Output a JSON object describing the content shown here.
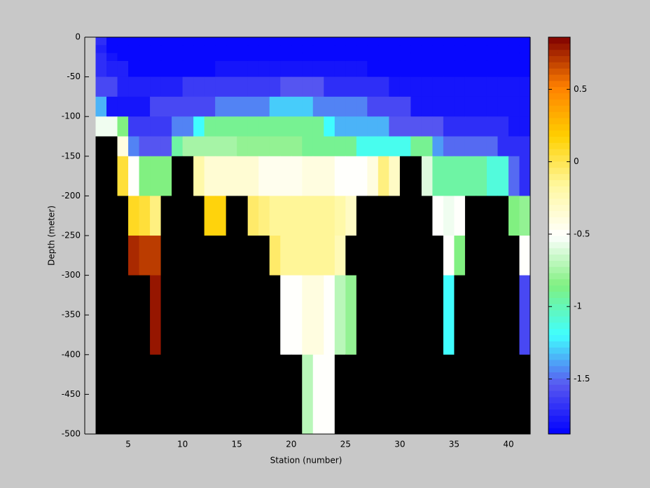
{
  "chart_data": {
    "type": "heatmap",
    "xlabel": "Station (number)",
    "ylabel": "Depth (meter)",
    "x": [
      2,
      3,
      4,
      5,
      6,
      7,
      8,
      9,
      10,
      11,
      12,
      13,
      14,
      15,
      16,
      17,
      18,
      19,
      20,
      21,
      22,
      23,
      24,
      25,
      26,
      27,
      28,
      29,
      30,
      31,
      32,
      33,
      34,
      35,
      36,
      37,
      38,
      39,
      40,
      41,
      42
    ],
    "y": [
      0,
      -10,
      -20,
      -30,
      -50,
      -75,
      -100,
      -125,
      -150,
      -200,
      -250,
      -300,
      -400,
      -500
    ],
    "values": [
      [
        -1.7,
        -1.85,
        -1.85,
        -1.85,
        -1.85,
        -1.85,
        -1.85,
        -1.85,
        -1.85,
        -1.85,
        -1.85,
        -1.85,
        -1.85,
        -1.85,
        -1.85,
        -1.85,
        -1.85,
        -1.85,
        -1.85,
        -1.85,
        -1.85,
        -1.85,
        -1.85,
        -1.85,
        -1.85,
        -1.85,
        -1.85,
        -1.85,
        -1.85,
        -1.85,
        -1.85,
        -1.85,
        -1.85,
        -1.85,
        -1.85,
        -1.85,
        -1.85,
        -1.85,
        -1.85,
        -1.85
      ],
      [
        -1.75,
        -1.85,
        -1.85,
        -1.85,
        -1.85,
        -1.85,
        -1.85,
        -1.85,
        -1.85,
        -1.85,
        -1.85,
        -1.85,
        -1.85,
        -1.85,
        -1.85,
        -1.85,
        -1.85,
        -1.85,
        -1.85,
        -1.85,
        -1.85,
        -1.85,
        -1.85,
        -1.85,
        -1.85,
        -1.85,
        -1.85,
        -1.85,
        -1.85,
        -1.85,
        -1.85,
        -1.85,
        -1.85,
        -1.85,
        -1.85,
        -1.85,
        -1.85,
        -1.85,
        -1.85,
        -1.85
      ],
      [
        -1.7,
        -1.8,
        -1.85,
        -1.85,
        -1.85,
        -1.85,
        -1.85,
        -1.85,
        -1.85,
        -1.85,
        -1.85,
        -1.85,
        -1.85,
        -1.85,
        -1.85,
        -1.85,
        -1.85,
        -1.85,
        -1.85,
        -1.85,
        -1.85,
        -1.85,
        -1.85,
        -1.85,
        -1.85,
        -1.85,
        -1.85,
        -1.85,
        -1.85,
        -1.85,
        -1.85,
        -1.85,
        -1.85,
        -1.85,
        -1.85,
        -1.85,
        -1.85,
        -1.85,
        -1.85,
        -1.85
      ],
      [
        -1.7,
        -1.75,
        -1.75,
        -1.85,
        -1.85,
        -1.85,
        -1.85,
        -1.85,
        -1.85,
        -1.85,
        -1.85,
        -1.8,
        -1.8,
        -1.8,
        -1.8,
        -1.8,
        -1.8,
        -1.8,
        -1.8,
        -1.8,
        -1.8,
        -1.8,
        -1.8,
        -1.8,
        -1.8,
        -1.85,
        -1.85,
        -1.85,
        -1.85,
        -1.85,
        -1.85,
        -1.85,
        -1.85,
        -1.85,
        -1.85,
        -1.85,
        -1.85,
        -1.85,
        -1.85,
        -1.85
      ],
      [
        -1.6,
        -1.6,
        -1.75,
        -1.75,
        -1.75,
        -1.75,
        -1.75,
        -1.75,
        -1.65,
        -1.65,
        -1.65,
        -1.65,
        -1.65,
        -1.65,
        -1.65,
        -1.65,
        -1.65,
        -1.55,
        -1.55,
        -1.55,
        -1.55,
        -1.7,
        -1.7,
        -1.7,
        -1.7,
        -1.7,
        -1.7,
        -1.8,
        -1.8,
        -1.8,
        -1.8,
        -1.8,
        -1.8,
        -1.8,
        -1.8,
        -1.8,
        -1.8,
        -1.8,
        -1.8,
        -1.8
      ],
      [
        -1.35,
        -1.8,
        -1.8,
        -1.8,
        -1.8,
        -1.6,
        -1.6,
        -1.6,
        -1.6,
        -1.6,
        -1.6,
        -1.45,
        -1.45,
        -1.45,
        -1.45,
        -1.45,
        -1.3,
        -1.3,
        -1.3,
        -1.3,
        -1.45,
        -1.45,
        -1.45,
        -1.45,
        -1.45,
        -1.6,
        -1.6,
        -1.6,
        -1.6,
        -1.8,
        -1.8,
        -1.8,
        -1.8,
        -1.8,
        -1.8,
        -1.8,
        -1.8,
        -1.8,
        -1.8,
        -1.8
      ],
      [
        -0.55,
        -0.55,
        -0.85,
        -1.65,
        -1.65,
        -1.65,
        -1.65,
        -1.45,
        -1.45,
        -1.2,
        -0.9,
        -0.9,
        -0.9,
        -0.9,
        -0.9,
        -0.9,
        -0.9,
        -0.9,
        -0.9,
        -0.9,
        -0.9,
        -1.2,
        -1.35,
        -1.35,
        -1.35,
        -1.35,
        -1.35,
        -1.55,
        -1.55,
        -1.55,
        -1.55,
        -1.55,
        -1.7,
        -1.7,
        -1.7,
        -1.7,
        -1.7,
        -1.7,
        -1.8,
        -1.8
      ],
      [
        null,
        null,
        -0.4,
        -1.45,
        -1.55,
        -1.55,
        -1.55,
        -0.95,
        -0.75,
        -0.75,
        -0.75,
        -0.75,
        -0.75,
        -0.8,
        -0.8,
        -0.8,
        -0.8,
        -0.8,
        -0.8,
        -0.9,
        -0.9,
        -0.9,
        -0.9,
        -0.9,
        -1.15,
        -1.15,
        -1.15,
        -1.15,
        -1.15,
        -0.9,
        -0.9,
        -1.4,
        -1.5,
        -1.5,
        -1.5,
        -1.5,
        -1.5,
        -1.7,
        -1.7,
        -1.7
      ],
      [
        null,
        null,
        0.05,
        -0.5,
        -0.85,
        -0.85,
        -0.85,
        null,
        null,
        -0.2,
        -0.35,
        -0.35,
        -0.35,
        -0.35,
        -0.35,
        -0.45,
        -0.45,
        -0.45,
        -0.45,
        -0.4,
        -0.4,
        -0.4,
        -0.5,
        -0.5,
        -0.5,
        -0.4,
        -0.1,
        -0.3,
        null,
        null,
        -0.6,
        -0.95,
        -0.95,
        -0.95,
        -0.95,
        -0.95,
        -1.1,
        -1.1,
        -1.5,
        -1.7
      ],
      [
        null,
        null,
        null,
        0.1,
        0.05,
        -0.1,
        null,
        null,
        null,
        null,
        0.15,
        0.15,
        null,
        null,
        -0.05,
        -0.1,
        -0.15,
        -0.15,
        -0.15,
        -0.15,
        -0.15,
        -0.15,
        -0.2,
        -0.3,
        null,
        null,
        null,
        null,
        null,
        null,
        null,
        -0.5,
        -0.55,
        -0.5,
        null,
        null,
        null,
        null,
        -0.85,
        -0.8
      ],
      [
        null,
        null,
        null,
        0.75,
        0.7,
        0.7,
        null,
        null,
        null,
        null,
        null,
        null,
        null,
        null,
        null,
        null,
        -0.05,
        -0.15,
        -0.15,
        -0.15,
        -0.15,
        -0.15,
        -0.25,
        null,
        null,
        null,
        null,
        null,
        null,
        null,
        null,
        null,
        -0.5,
        -0.85,
        null,
        null,
        null,
        null,
        null,
        -0.5
      ],
      [
        null,
        null,
        null,
        null,
        null,
        0.8,
        null,
        null,
        null,
        null,
        null,
        null,
        null,
        null,
        null,
        null,
        null,
        -0.5,
        -0.5,
        -0.4,
        -0.4,
        -0.5,
        -0.7,
        -0.8,
        null,
        null,
        null,
        null,
        null,
        null,
        null,
        null,
        -1.2,
        null,
        null,
        null,
        null,
        null,
        null,
        -1.6
      ],
      [
        null,
        null,
        null,
        null,
        null,
        null,
        null,
        null,
        null,
        null,
        null,
        null,
        null,
        null,
        null,
        null,
        null,
        null,
        null,
        -0.7,
        -0.5,
        -0.5,
        null,
        null,
        null,
        null,
        null,
        null,
        null,
        null,
        null,
        null,
        null,
        null,
        null,
        null,
        null,
        null,
        null,
        null
      ]
    ],
    "xlim": [
      1,
      42
    ],
    "ylim": [
      -500,
      0
    ],
    "xticks": [
      5,
      10,
      15,
      20,
      25,
      30,
      35,
      40
    ],
    "yticks": [
      -500,
      -450,
      -400,
      -350,
      -300,
      -250,
      -200,
      -150,
      -100,
      -50,
      0
    ],
    "clim": [
      -1.88,
      0.86
    ],
    "cticks": [
      -1.5,
      -1,
      -0.5,
      0,
      0.5
    ],
    "colormap": [
      "#0000ff",
      "#5858f0",
      "#40ffff",
      "#80f080",
      "#ffffff",
      "#fff8a0",
      "#ffd000",
      "#ff8000",
      "#800000"
    ],
    "nan_color": "#000000"
  }
}
